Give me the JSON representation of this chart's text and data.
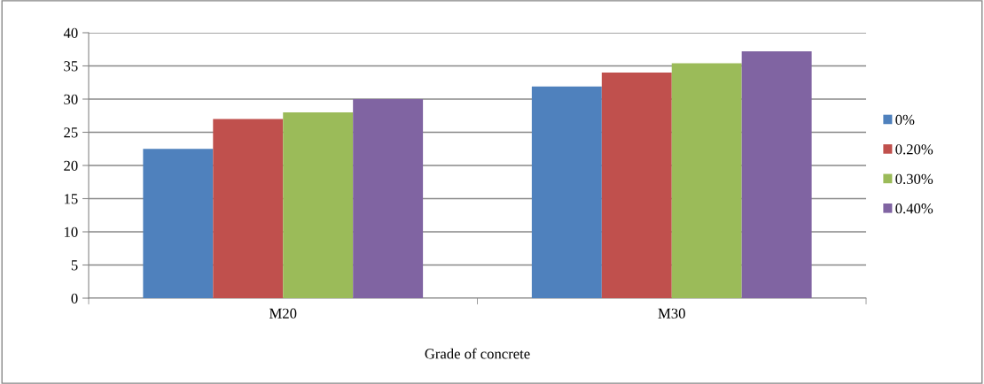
{
  "chart_data": {
    "type": "bar",
    "xlabel": "Grade of concrete",
    "categories": [
      "M20",
      "M30"
    ],
    "series": [
      {
        "name": "0%",
        "color": "#4f81bd",
        "values": [
          22.5,
          31.9
        ]
      },
      {
        "name": "0.20%",
        "color": "#c0504d",
        "values": [
          27.0,
          34.0
        ]
      },
      {
        "name": "0.30%",
        "color": "#9bbb59",
        "values": [
          28.0,
          35.4
        ]
      },
      {
        "name": "0.40%",
        "color": "#8064a2",
        "values": [
          30.0,
          37.2
        ]
      }
    ],
    "ylim": [
      0,
      40
    ],
    "yticks": [
      0,
      5,
      10,
      15,
      20,
      25,
      30,
      35,
      40
    ],
    "grid": "y",
    "legend": "right"
  }
}
